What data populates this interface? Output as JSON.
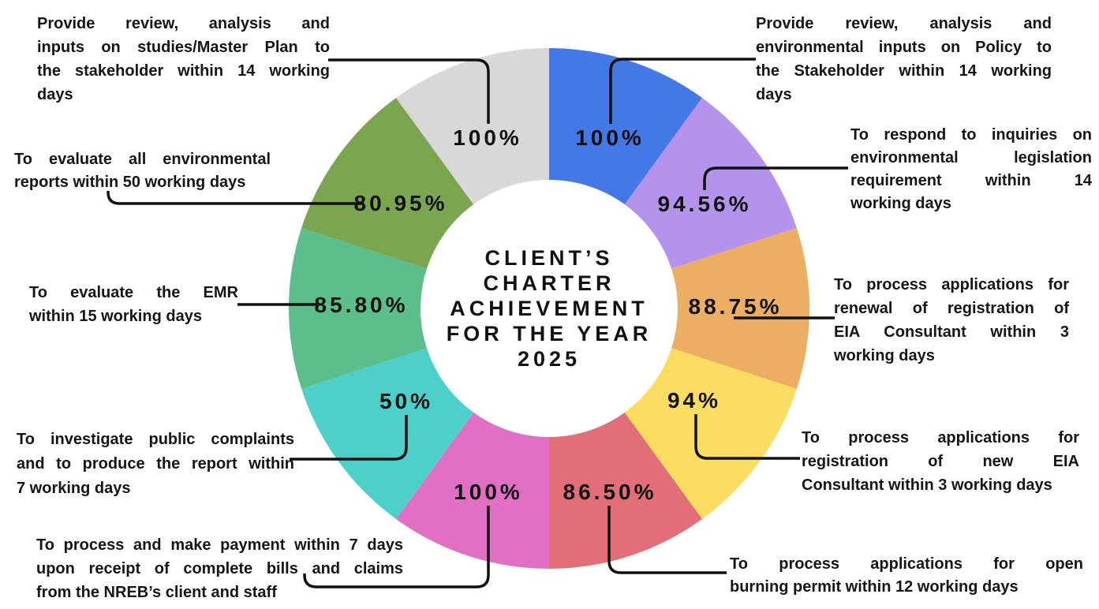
{
  "page": {
    "background": "#ffffff"
  },
  "chart_data": {
    "type": "pie",
    "subtype": "donut",
    "title": "CLIENT’S CHARTER ACHIEVEMENT FOR THE YEAR 2025",
    "title_lines": [
      "CLIENT’S",
      "CHARTER",
      "ACHIEVEMENT",
      "FOR THE YEAR",
      "2025"
    ],
    "value_unit": "%",
    "equal_slice_angles": true,
    "slice_angle_deg": 36,
    "layout_hint": "10 equal donut segments, clockwise from 12 o'clock; achievement % printed on each segment; captions connected with black elbow leader lines",
    "segments": [
      {
        "id": "policy-inputs",
        "value": 100,
        "value_label": "100%",
        "color": "#4478E6",
        "label": "Provide review, analysis and environmental inputs on Policy to the Stakeholder within 14 working days",
        "lines": [
          "Provide review, analysis and",
          "environmental inputs on Policy to",
          "the Stakeholder within 14 working",
          "days"
        ]
      },
      {
        "id": "legislation-inquiries",
        "value": 94.56,
        "value_label": "94.56%",
        "color": "#B493EC",
        "label": "To respond to inquiries on environmental legislation requirement within 14 working days",
        "lines": [
          "To respond to inquiries on",
          "environmental legislation",
          "requirement within 14",
          "working days"
        ]
      },
      {
        "id": "eia-consultant-renewal",
        "value": 88.75,
        "value_label": "88.75%",
        "color": "#ECAE62",
        "label": "To process applications for renewal of registration of EIA Consultant within 3 working days",
        "lines": [
          "To process applications for",
          "renewal of registration of",
          "EIA Consultant within 3",
          "working days"
        ]
      },
      {
        "id": "eia-consultant-new-registration",
        "value": 94,
        "value_label": "94%",
        "color": "#FADC60",
        "label": "To process applications for registration of new EIA Consultant within 3 working days",
        "lines": [
          "To process applications for",
          "registration of new EIA",
          "Consultant within 3 working days"
        ]
      },
      {
        "id": "open-burning-permit",
        "value": 86.5,
        "value_label": "86.50%",
        "color": "#E26E78",
        "label": "To process applications for open burning permit within 12 working days",
        "lines": [
          "To process applications for open",
          "burning permit within 12 working days"
        ]
      },
      {
        "id": "payment-processing",
        "value": 100,
        "value_label": "100%",
        "color": "#E170C5",
        "label": "To process and make payment within 7 days upon receipt of complete bills and claims from the NREB’s client and staff",
        "lines": [
          "To process and make payment within 7 days",
          "upon receipt of complete bills and claims",
          "from the NREB’s client and staff"
        ]
      },
      {
        "id": "public-complaints",
        "value": 50,
        "value_label": "50%",
        "color": "#4ED0CA",
        "label": "To investigate public complaints and to produce the report within 7 working days",
        "lines": [
          "To investigate public complaints",
          "and to produce the report within",
          "7 working days"
        ]
      },
      {
        "id": "emr-evaluation",
        "value": 85.8,
        "value_label": "85.80%",
        "color": "#5CBF8B",
        "label": "To evaluate the EMR within 15 working days",
        "lines": [
          "To evaluate the EMR",
          "within 15 working days"
        ]
      },
      {
        "id": "environmental-reports",
        "value": 80.95,
        "value_label": "80.95%",
        "color": "#7AA64F",
        "label": "To evaluate all environmental reports within 50 working days",
        "lines": [
          "To evaluate all environmental",
          "reports within 50 working days"
        ]
      },
      {
        "id": "master-plan-inputs",
        "value": 100,
        "value_label": "100%",
        "color": "#D8D8D8",
        "label": "Provide review, analysis and inputs on studies/Master Plan to the stakeholder within 14 working days",
        "lines": [
          "Provide review, analysis and",
          "inputs on studies/Master Plan to",
          "the stakeholder within 14 working",
          "days"
        ]
      }
    ]
  }
}
